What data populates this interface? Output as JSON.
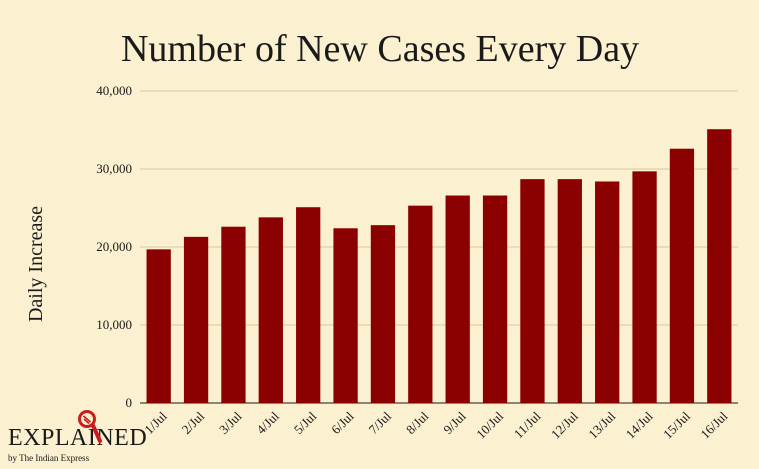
{
  "chart_data": {
    "type": "bar",
    "title": "Number of New Cases Every Day",
    "xlabel": "",
    "ylabel": "Daily Increase",
    "ylim": [
      0,
      40000
    ],
    "yticks": [
      0,
      10000,
      20000,
      30000,
      40000
    ],
    "ytick_labels": [
      "0",
      "10,000",
      "20,000",
      "30,000",
      "40,000"
    ],
    "categories": [
      "1/Jul",
      "2/Jul",
      "3/Jul",
      "4/Jul",
      "5/Jul",
      "6/Jul",
      "7/Jul",
      "8/Jul",
      "9/Jul",
      "10/Jul",
      "11/Jul",
      "12/Jul",
      "13/Jul",
      "14/Jul",
      "15/Jul",
      "16/Jul"
    ],
    "values": [
      19700,
      21300,
      22600,
      23800,
      25100,
      22400,
      22800,
      25300,
      26600,
      26600,
      28700,
      28700,
      28400,
      29700,
      32600,
      35100
    ],
    "grid": true,
    "legend": "none",
    "bar_color": "#8b0000",
    "background": "#fbf0cf"
  },
  "logo": {
    "text": "EXPLAINED",
    "subtitle": "by The Indian Express",
    "icon": "magnifier-icon"
  }
}
